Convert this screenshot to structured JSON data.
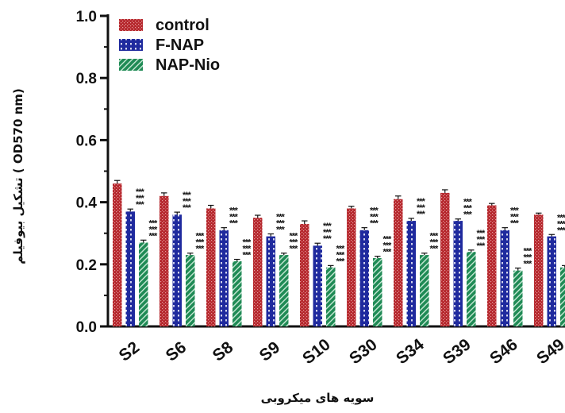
{
  "chart_data": {
    "type": "bar",
    "ylabel": "تشکیل بیوفیلم ( OD570 nm)",
    "xlabel": "سویه های میکروبی",
    "ylim": [
      0,
      1.0
    ],
    "yticks": [
      "0.0",
      "0.2",
      "0.4",
      "0.6",
      "0.8",
      "1.0"
    ],
    "categories": [
      "S2",
      "S6",
      "S8",
      "S9",
      "S10",
      "S30",
      "S34",
      "S39",
      "S46",
      "S49"
    ],
    "series": [
      {
        "name": "control",
        "values": [
          0.46,
          0.42,
          0.38,
          0.35,
          0.33,
          0.38,
          0.41,
          0.43,
          0.39,
          0.36
        ],
        "errors": [
          0.01,
          0.01,
          0.01,
          0.008,
          0.01,
          0.007,
          0.01,
          0.01,
          0.006,
          0.005
        ]
      },
      {
        "name": "F-NAP",
        "values": [
          0.37,
          0.36,
          0.31,
          0.29,
          0.26,
          0.31,
          0.34,
          0.34,
          0.31,
          0.29
        ],
        "errors": [
          0.008,
          0.008,
          0.008,
          0.008,
          0.008,
          0.008,
          0.008,
          0.006,
          0.008,
          0.006
        ]
      },
      {
        "name": "NAP-Nio",
        "values": [
          0.27,
          0.23,
          0.21,
          0.23,
          0.19,
          0.22,
          0.23,
          0.24,
          0.18,
          0.19
        ],
        "errors": [
          0.008,
          0.006,
          0.006,
          0.006,
          0.006,
          0.006,
          0.006,
          0.006,
          0.008,
          0.006
        ]
      }
    ],
    "significance": "***",
    "legend_position": "top-left",
    "grid": false
  },
  "colors": {
    "control": "#b5262c",
    "F-NAP": "#1f2a9e",
    "NAP-Nio": "#1f8a55",
    "axis": "#111111"
  }
}
